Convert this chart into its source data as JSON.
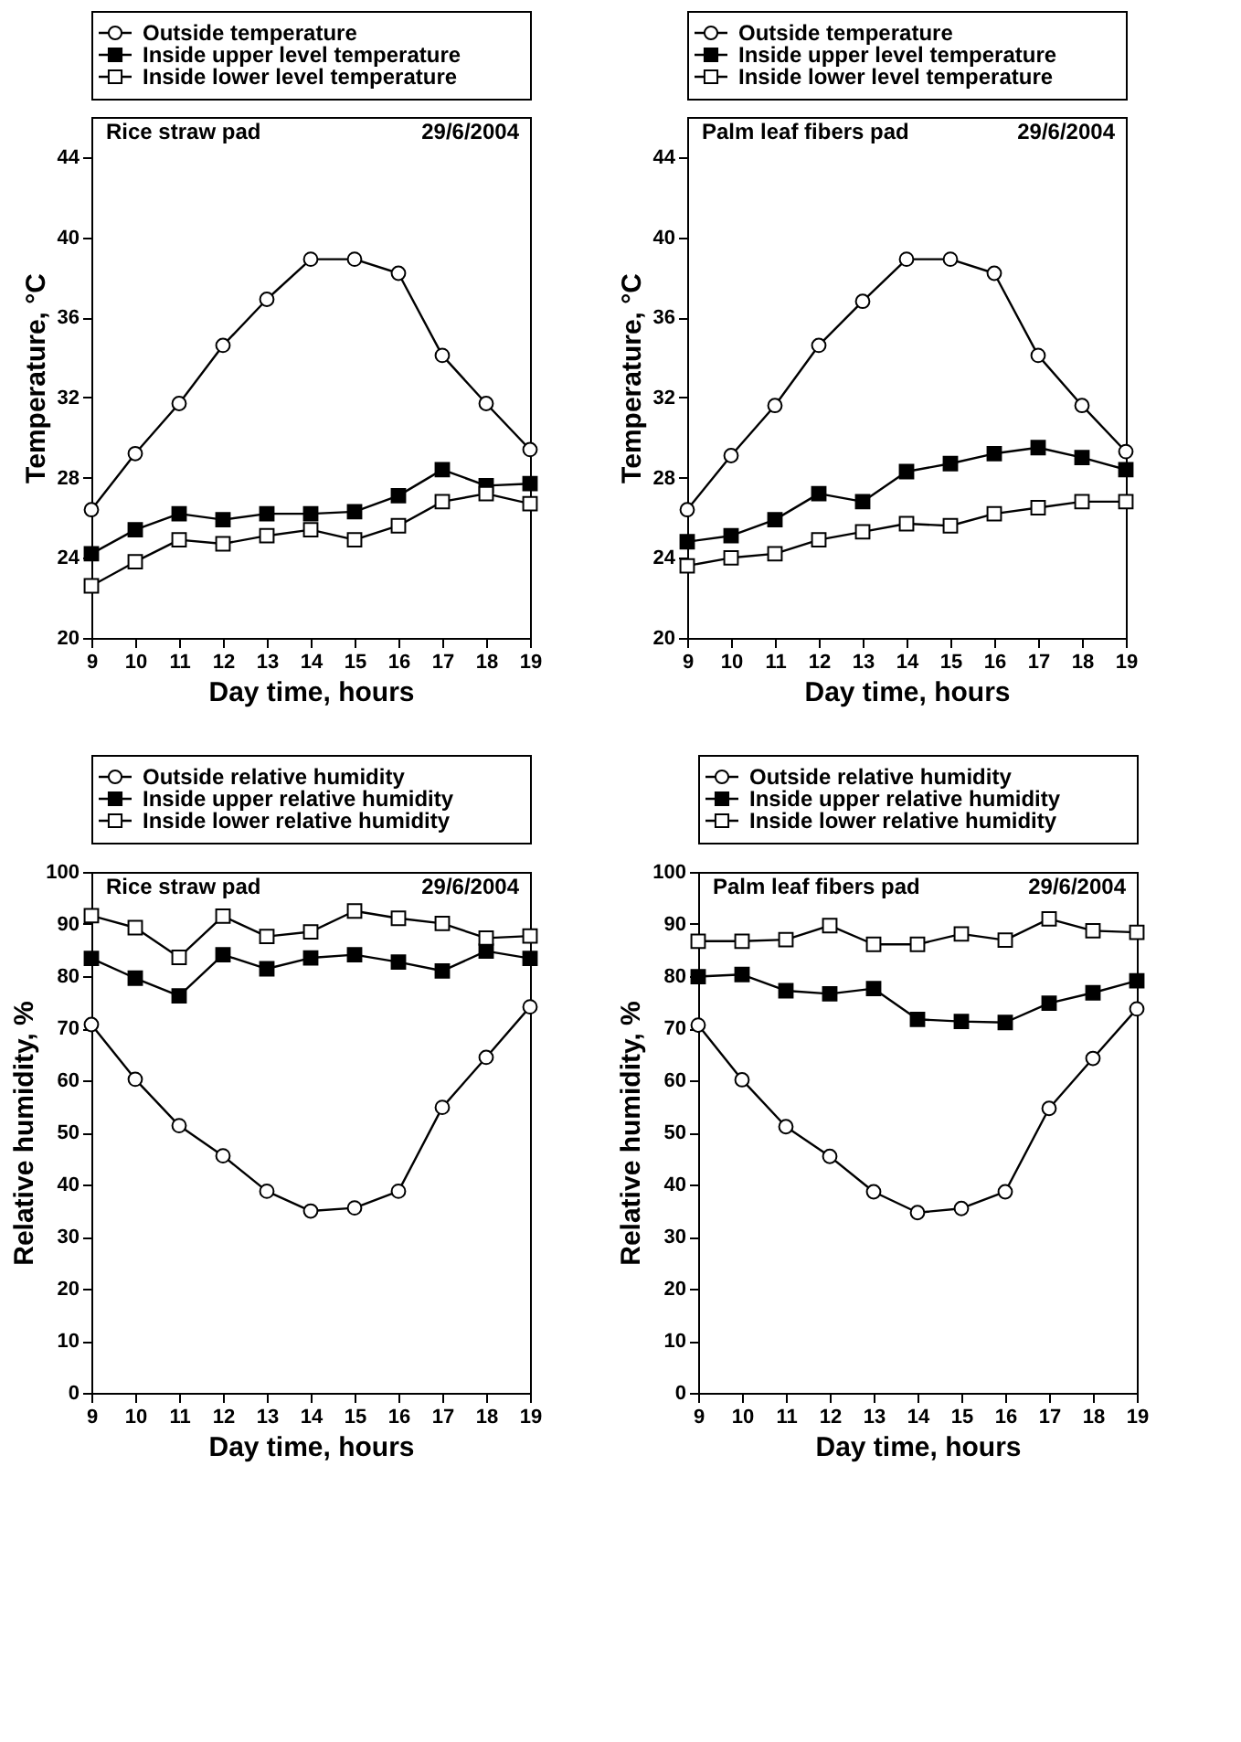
{
  "chart_data": [
    {
      "type": "line",
      "xlabel": "Day time, hours",
      "ylabel": "Temperature, °C",
      "annotations": [
        "Rice straw pad",
        "29/6/2004"
      ],
      "x": [
        9,
        10,
        11,
        12,
        13,
        14,
        15,
        16,
        17,
        18,
        19
      ],
      "xlim": [
        9,
        19
      ],
      "xticks": [
        9,
        10,
        11,
        12,
        13,
        14,
        15,
        16,
        17,
        18,
        19
      ],
      "ylim": [
        20,
        46
      ],
      "yticks": [
        20,
        24,
        28,
        32,
        36,
        40,
        44
      ],
      "grid": false,
      "legend": "top",
      "series": [
        {
          "name": "Outside temperature",
          "color": "#ffffff",
          "marker": "circle",
          "values": [
            26.4,
            29.2,
            31.7,
            34.6,
            36.9,
            38.9,
            38.9,
            38.2,
            34.1,
            31.7,
            29.4
          ]
        },
        {
          "name": "Inside upper level temperature",
          "color": "#000000",
          "marker": "square",
          "values": [
            24.2,
            25.4,
            26.2,
            25.9,
            26.2,
            26.2,
            26.3,
            27.1,
            28.4,
            27.6,
            27.7
          ]
        },
        {
          "name": "Inside lower level temperature",
          "color": "#ffffff",
          "marker": "square",
          "values": [
            22.6,
            23.8,
            24.9,
            24.7,
            25.1,
            25.4,
            24.9,
            25.6,
            26.8,
            27.2,
            26.7
          ]
        }
      ]
    },
    {
      "type": "line",
      "xlabel": "Day time, hours",
      "ylabel": "Temperature, °C",
      "annotations": [
        "Palm leaf fibers pad",
        "29/6/2004"
      ],
      "x": [
        9,
        10,
        11,
        12,
        13,
        14,
        15,
        16,
        17,
        18,
        19
      ],
      "xlim": [
        9,
        19
      ],
      "xticks": [
        9,
        10,
        11,
        12,
        13,
        14,
        15,
        16,
        17,
        18,
        19
      ],
      "ylim": [
        20,
        46
      ],
      "yticks": [
        20,
        24,
        28,
        32,
        36,
        40,
        44
      ],
      "grid": false,
      "legend": "top",
      "series": [
        {
          "name": "Outside temperature",
          "color": "#ffffff",
          "marker": "circle",
          "values": [
            26.4,
            29.1,
            31.6,
            34.6,
            36.8,
            38.9,
            38.9,
            38.2,
            34.1,
            31.6,
            29.3
          ]
        },
        {
          "name": "Inside upper level temperature",
          "color": "#000000",
          "marker": "square",
          "values": [
            24.8,
            25.1,
            25.9,
            27.2,
            26.8,
            28.3,
            28.7,
            29.2,
            29.5,
            29.0,
            28.4
          ]
        },
        {
          "name": "Inside lower level temperature",
          "color": "#ffffff",
          "marker": "square",
          "values": [
            23.6,
            24.0,
            24.2,
            24.9,
            25.3,
            25.7,
            25.6,
            26.2,
            26.5,
            26.8,
            26.8
          ]
        }
      ]
    },
    {
      "type": "line",
      "xlabel": "Day time, hours",
      "ylabel": "Relative humidity, %",
      "annotations": [
        "Rice straw pad",
        "29/6/2004"
      ],
      "x": [
        9,
        10,
        11,
        12,
        13,
        14,
        15,
        16,
        17,
        18,
        19
      ],
      "xlim": [
        9,
        19
      ],
      "xticks": [
        9,
        10,
        11,
        12,
        13,
        14,
        15,
        16,
        17,
        18,
        19
      ],
      "ylim": [
        0,
        100
      ],
      "yticks": [
        0,
        10,
        20,
        30,
        40,
        50,
        60,
        70,
        80,
        90,
        100
      ],
      "grid": false,
      "legend": "top",
      "series": [
        {
          "name": "Outside relative humidity",
          "color": "#ffffff",
          "marker": "circle",
          "values": [
            70.7,
            60.2,
            51.3,
            45.5,
            38.7,
            34.9,
            35.5,
            38.7,
            54.8,
            64.4,
            74.1
          ]
        },
        {
          "name": "Inside upper relative humidity",
          "color": "#000000",
          "marker": "square",
          "values": [
            83.4,
            79.6,
            76.2,
            84.1,
            81.4,
            83.5,
            84.1,
            82.7,
            81.0,
            84.8,
            83.4
          ]
        },
        {
          "name": "Inside lower relative humidity",
          "color": "#ffffff",
          "marker": "square",
          "values": [
            91.6,
            89.3,
            83.6,
            91.5,
            87.6,
            88.5,
            92.5,
            91.1,
            90.1,
            87.3,
            87.7
          ]
        }
      ]
    },
    {
      "type": "line",
      "xlabel": "Day time, hours",
      "ylabel": "Relative humidity, %",
      "annotations": [
        "Palm leaf fibers pad",
        "29/6/2004"
      ],
      "x": [
        9,
        10,
        11,
        12,
        13,
        14,
        15,
        16,
        17,
        18,
        19
      ],
      "xlim": [
        9,
        19
      ],
      "xticks": [
        9,
        10,
        11,
        12,
        13,
        14,
        15,
        16,
        17,
        18,
        19
      ],
      "ylim": [
        0,
        100
      ],
      "yticks": [
        0,
        10,
        20,
        30,
        40,
        50,
        60,
        70,
        80,
        90,
        100
      ],
      "grid": false,
      "legend": "top",
      "series": [
        {
          "name": "Outside relative humidity",
          "color": "#ffffff",
          "marker": "circle",
          "values": [
            70.6,
            60.1,
            51.1,
            45.4,
            38.6,
            34.6,
            35.4,
            38.6,
            54.6,
            64.2,
            73.7
          ]
        },
        {
          "name": "Inside upper relative humidity",
          "color": "#000000",
          "marker": "square",
          "values": [
            79.9,
            80.3,
            77.2,
            76.6,
            77.6,
            71.7,
            71.3,
            71.1,
            74.8,
            76.8,
            79.1
          ]
        },
        {
          "name": "Inside lower relative humidity",
          "color": "#ffffff",
          "marker": "square",
          "values": [
            86.7,
            86.7,
            87.0,
            89.7,
            86.1,
            86.1,
            88.1,
            86.9,
            91.0,
            88.7,
            88.4
          ]
        }
      ]
    }
  ]
}
